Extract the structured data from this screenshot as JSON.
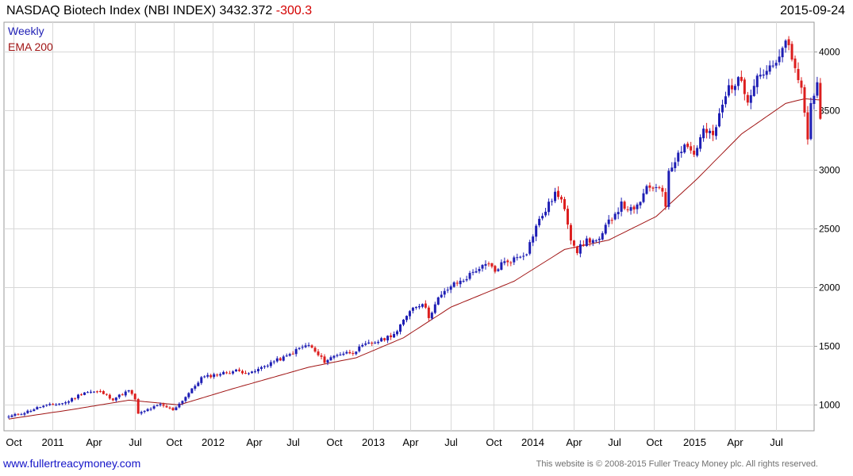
{
  "header": {
    "title": "NASDAQ Biotech Index (NBI INDEX)",
    "price": "3432.372",
    "change": "-300.3",
    "date": "2015-09-24"
  },
  "legend": {
    "series_label": "Weekly",
    "ema_label": "EMA 200"
  },
  "footer": {
    "url": "www.fullertreacymoney.com",
    "copyright": "This website is © 2008-2015 Fuller Treacy Money plc. All rights reserved."
  },
  "colors": {
    "up": "#1e1eb4",
    "down": "#dc1e1e",
    "ema": "#a01414",
    "grid": "#d8d8d8"
  },
  "chart_data": {
    "type": "candlestick",
    "title": "NASDAQ Biotech Index (NBI INDEX)",
    "frequency": "weekly",
    "ylim": [
      780,
      4250
    ],
    "y_ticks": [
      1000,
      1500,
      2000,
      2500,
      3000,
      3500,
      4000
    ],
    "x_tick_labels": [
      "Oct",
      "2011",
      "Apr",
      "Jul",
      "Oct",
      "2012",
      "Apr",
      "Jul",
      "Oct",
      "2013",
      "Apr",
      "Jul",
      "Oct",
      "2014",
      "Apr",
      "Jul",
      "Oct",
      "2015",
      "Apr",
      "Jul"
    ],
    "close_anchors": [
      [
        0,
        900
      ],
      [
        5,
        935
      ],
      [
        10,
        985
      ],
      [
        18,
        1020
      ],
      [
        24,
        1110
      ],
      [
        29,
        1110
      ],
      [
        33,
        1050
      ],
      [
        38,
        1120
      ],
      [
        40,
        1050
      ],
      [
        41,
        920
      ],
      [
        44,
        960
      ],
      [
        48,
        1000
      ],
      [
        52,
        960
      ],
      [
        54,
        1010
      ],
      [
        58,
        1130
      ],
      [
        61,
        1230
      ],
      [
        66,
        1260
      ],
      [
        72,
        1290
      ],
      [
        77,
        1270
      ],
      [
        83,
        1360
      ],
      [
        88,
        1410
      ],
      [
        92,
        1480
      ],
      [
        95,
        1510
      ],
      [
        98,
        1420
      ],
      [
        100,
        1370
      ],
      [
        104,
        1430
      ],
      [
        109,
        1450
      ],
      [
        113,
        1510
      ],
      [
        118,
        1550
      ],
      [
        123,
        1620
      ],
      [
        127,
        1810
      ],
      [
        131,
        1870
      ],
      [
        133,
        1750
      ],
      [
        136,
        1900
      ],
      [
        140,
        2010
      ],
      [
        144,
        2060
      ],
      [
        148,
        2150
      ],
      [
        152,
        2190
      ],
      [
        154,
        2130
      ],
      [
        156,
        2200
      ],
      [
        160,
        2240
      ],
      [
        164,
        2300
      ],
      [
        167,
        2520
      ],
      [
        171,
        2700
      ],
      [
        173,
        2800
      ],
      [
        176,
        2680
      ],
      [
        178,
        2420
      ],
      [
        180,
        2310
      ],
      [
        183,
        2400
      ],
      [
        187,
        2390
      ],
      [
        190,
        2560
      ],
      [
        194,
        2700
      ],
      [
        198,
        2640
      ],
      [
        202,
        2830
      ],
      [
        206,
        2870
      ],
      [
        208,
        2700
      ],
      [
        209,
        3000
      ],
      [
        214,
        3220
      ],
      [
        217,
        3130
      ],
      [
        220,
        3330
      ],
      [
        223,
        3280
      ],
      [
        226,
        3540
      ],
      [
        228,
        3700
      ],
      [
        232,
        3760
      ],
      [
        234,
        3600
      ],
      [
        237,
        3800
      ],
      [
        241,
        3850
      ],
      [
        244,
        3920
      ],
      [
        246,
        4120
      ],
      [
        248,
        3910
      ],
      [
        251,
        3700
      ],
      [
        253,
        3250
      ],
      [
        254,
        3600
      ],
      [
        256,
        3700
      ],
      [
        257,
        3430
      ]
    ],
    "ema200_anchors": [
      [
        0,
        880
      ],
      [
        20,
        960
      ],
      [
        38,
        1040
      ],
      [
        44,
        1025
      ],
      [
        54,
        1000
      ],
      [
        70,
        1130
      ],
      [
        95,
        1320
      ],
      [
        110,
        1400
      ],
      [
        125,
        1570
      ],
      [
        140,
        1830
      ],
      [
        160,
        2050
      ],
      [
        176,
        2320
      ],
      [
        190,
        2400
      ],
      [
        205,
        2600
      ],
      [
        218,
        2920
      ],
      [
        232,
        3300
      ],
      [
        246,
        3560
      ],
      [
        252,
        3600
      ],
      [
        257,
        3590
      ]
    ]
  }
}
